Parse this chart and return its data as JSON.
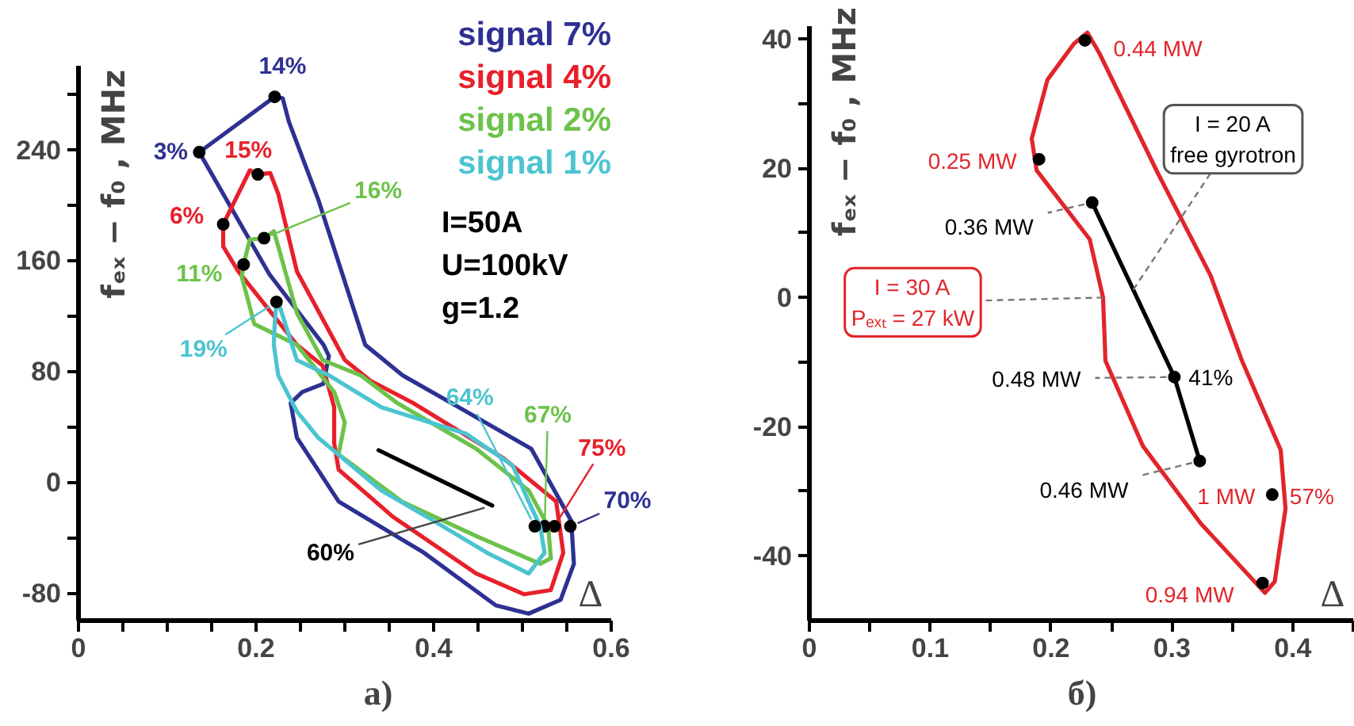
{
  "chart_data": [
    {
      "type": "line",
      "title": "а)",
      "xlabel": "Δ",
      "ylabel": "fₑₓ − f₀ , MHz",
      "xlim": [
        0,
        0.6
      ],
      "ylim": [
        -100,
        300
      ],
      "xticks": [
        0,
        {
          "value": 0.05,
          "label": null
        },
        {
          "value": 0.1,
          "label": null
        },
        {
          "value": 0.15,
          "label": null
        },
        0.2,
        {
          "value": 0.25,
          "label": null
        },
        {
          "value": 0.3,
          "label": null
        },
        {
          "value": 0.35,
          "label": null
        },
        0.4,
        {
          "value": 0.45,
          "label": null
        },
        {
          "value": 0.5,
          "label": null
        },
        {
          "value": 0.55,
          "label": null
        },
        0.6
      ],
      "yticks": [
        -80,
        {
          "value": -40,
          "label": null
        },
        0,
        {
          "value": 40,
          "label": null
        },
        80,
        {
          "value": 120,
          "label": null
        },
        160,
        {
          "value": 200,
          "label": null
        },
        240,
        {
          "value": 280,
          "label": null
        }
      ],
      "series": [
        {
          "name": "signal 7%",
          "color": "#2e3192",
          "x": [
            0.136,
            0.221,
            0.23,
            0.237,
            0.27,
            0.323,
            0.365,
            0.42,
            0.51,
            0.555,
            0.558,
            null,
            0.558,
            0.543,
            0.507,
            0.47,
            0.389,
            0.293,
            0.246,
            0.239,
            null,
            0.239,
            0.252,
            0.276,
            0.282,
            null,
            0.282,
            0.276,
            0.215,
            0.136
          ],
          "values": [
            238,
            278,
            277,
            260,
            204,
            99,
            77,
            57,
            24,
            -28,
            -59,
            null,
            -59,
            -85,
            -95,
            -89,
            -51,
            -14,
            32,
            57,
            null,
            57,
            65,
            71,
            91,
            null,
            91,
            99,
            150,
            238
          ]
        },
        {
          "type": "scatter",
          "marker": "circle",
          "color": "#000000",
          "x": [
            0.136,
            0.221,
            0.554
          ],
          "values": [
            238,
            278,
            -32
          ]
        },
        {
          "name": "signal 4%",
          "color": "#e8202a",
          "x": [
            0.163,
            0.193,
            0.202,
            0.216,
            0.225,
            0.246,
            0.3,
            0.329,
            0.377,
            0.479,
            0.538,
            0.546,
            null,
            0.546,
            0.532,
            0.502,
            0.448,
            0.354,
            0.293,
            0.288,
            0.288,
            0.275,
            0.246,
            0.18,
            0.163,
            0.163
          ],
          "values": [
            186,
            225,
            222,
            223,
            208,
            152,
            88,
            73,
            57,
            17,
            -14,
            -51,
            null,
            -51,
            -78,
            -81,
            -66,
            -25,
            9,
            28,
            54,
            84,
            99,
            152,
            170,
            186
          ]
        },
        {
          "type": "scatter",
          "marker": "circle",
          "color": "#000000",
          "x": [
            0.163,
            0.202,
            0.536
          ],
          "values": [
            186,
            222,
            -32
          ]
        },
        {
          "name": "signal 2%",
          "color": "#6cc24a",
          "x": [
            0.186,
            0.193,
            0.209,
            0.22,
            0.225,
            0.246,
            0.275,
            0.318,
            0.359,
            0.448,
            0.507,
            0.529,
            0.532,
            null,
            0.532,
            0.52,
            0.448,
            0.364,
            0.293,
            null,
            0.293,
            0.3,
            null,
            0.3,
            0.288,
            0.246,
            0.198,
            0.184,
            null,
            0.184,
            0.186
          ],
          "values": [
            157,
            175,
            176,
            181,
            170,
            122,
            88,
            77,
            57,
            24,
            -6,
            -32,
            -55,
            null,
            -55,
            -59,
            -39,
            -14,
            20,
            null,
            20,
            43,
            null,
            43,
            65,
            99,
            114,
            148,
            null,
            148,
            157
          ]
        },
        {
          "type": "scatter",
          "marker": "circle",
          "color": "#000000",
          "x": [
            0.186,
            0.209,
            0.525
          ],
          "values": [
            157,
            176,
            -32
          ]
        },
        {
          "name": "signal 1%",
          "color": "#4cc4d0",
          "x": [
            0.223,
            0.226,
            0.246,
            0.282,
            0.341,
            0.436,
            0.489,
            0.507,
            0.52,
            0.525,
            null,
            0.525,
            0.507,
            0.46,
            0.4,
            0.341,
            0.27,
            0.246,
            0.225,
            0.22,
            null,
            0.22,
            0.221,
            0.223
          ],
          "values": [
            130,
            128,
            88,
            77,
            54,
            35,
            12,
            -14,
            -32,
            -51,
            null,
            -51,
            -66,
            -51,
            -28,
            -6,
            32,
            51,
            77,
            99,
            null,
            99,
            114,
            130
          ]
        },
        {
          "type": "scatter",
          "marker": "circle",
          "color": "#000000",
          "x": [
            0.223,
            0.514
          ],
          "values": [
            130,
            -32
          ]
        },
        {
          "color": "#000000",
          "x": [
            0.338,
            0.466
          ],
          "values": [
            23,
            -17
          ]
        }
      ],
      "annotations": [
        {
          "text": "3%",
          "x": 0.136,
          "y": 238
        },
        {
          "text": "14%",
          "x": 0.221,
          "y": 278
        },
        {
          "text": "70%",
          "x": 0.554,
          "y": -32
        },
        {
          "text": "6%",
          "x": 0.163,
          "y": 186
        },
        {
          "text": "15%",
          "x": 0.202,
          "y": 222
        },
        {
          "text": "75%",
          "x": 0.536,
          "y": -32
        },
        {
          "text": "11%",
          "x": 0.186,
          "y": 157
        },
        {
          "text": "16%",
          "x": 0.209,
          "y": 176
        },
        {
          "text": "67%",
          "x": 0.525,
          "y": -32
        },
        {
          "text": "19%",
          "x": 0.223,
          "y": 130
        },
        {
          "text": "64%",
          "x": 0.514,
          "y": -32
        },
        {
          "text": "60%",
          "x": 0.466,
          "y": -17
        },
        "I=50A",
        "U=100kV",
        "g=1.2"
      ]
    },
    {
      "type": "line",
      "title": "б)",
      "xlabel": "Δ",
      "ylabel": "fₑₓ − f₀ , MHz",
      "xlim": [
        0,
        0.45
      ],
      "ylim": [
        -50,
        42
      ],
      "xticks": [
        0,
        {
          "value": 0.05,
          "label": null
        },
        0.1,
        {
          "value": 0.15,
          "label": null
        },
        0.2,
        {
          "value": 0.25,
          "label": null
        },
        0.3,
        {
          "value": 0.35,
          "label": null
        },
        0.4,
        {
          "value": 0.45,
          "label": null
        }
      ],
      "yticks": [
        -40,
        {
          "value": -30,
          "label": null
        },
        -20,
        {
          "value": -10,
          "label": null
        },
        0,
        {
          "value": 10,
          "label": null
        },
        20,
        {
          "value": 30,
          "label": null
        },
        40
      ],
      "series": [
        {
          "color": "#e0262b",
          "x": [
            0.23,
            0.24,
            0.289,
            0.332,
            0.358,
            0.39,
            0.394,
            null,
            0.394,
            0.385,
            0.377,
            0.324,
            0.276,
            0.245,
            null,
            0.245,
            0.243,
            0.232,
            0.188,
            0.184,
            null,
            0.184,
            0.197,
            0.219,
            0.23
          ],
          "values": [
            41,
            37.8,
            19,
            3.4,
            -9.8,
            -23.6,
            -32.7,
            null,
            -32.7,
            -44,
            -45.7,
            -35,
            -23,
            -9.8,
            null,
            -9.8,
            0,
            9,
            19.7,
            24.6,
            null,
            24.6,
            33.7,
            39.3,
            41
          ]
        },
        {
          "type": "scatter",
          "marker": "circle",
          "color": "#000000",
          "x": [
            0.228,
            0.19,
            0.383,
            0.375
          ],
          "values": [
            39.8,
            21.4,
            -30.5,
            -44.2
          ]
        },
        {
          "color": "#000000",
          "x": [
            0.234,
            0.268,
            0.302,
            0.323
          ],
          "values": [
            14.7,
            1.2,
            -12.3,
            -25.3
          ]
        },
        {
          "type": "scatter",
          "marker": "circle",
          "color": "#000000",
          "x": [
            0.234,
            0.302,
            0.323
          ],
          "values": [
            14.7,
            -12.3,
            -25.3
          ]
        }
      ],
      "annotations": [
        {
          "text": "I = 20 A\nfree gyrotron",
          "x": 0.268,
          "y": 1.2
        },
        {
          "text": "I = 30 A\nPₑₓₜ = 27 kW",
          "x": 0.243,
          "y": 0
        },
        {
          "text": "0.44 MW",
          "x": 0.228,
          "y": 39.8
        },
        {
          "text": "0.25 MW",
          "x": 0.19,
          "y": 21.4
        },
        {
          "text": "1 MW",
          "x": 0.383,
          "y": -30.5
        },
        {
          "text": "57%",
          "x": 0.383,
          "y": -30.5
        },
        {
          "text": "0.94 MW",
          "x": 0.375,
          "y": -44.2
        },
        {
          "text": "0.36 MW",
          "x": 0.234,
          "y": 14.7
        },
        {
          "text": "0.48 MW",
          "x": 0.302,
          "y": -12.3
        },
        {
          "text": "41%",
          "x": 0.302,
          "y": -12.3
        },
        {
          "text": "0.46 MW",
          "x": 0.323,
          "y": -25.3
        }
      ]
    }
  ]
}
